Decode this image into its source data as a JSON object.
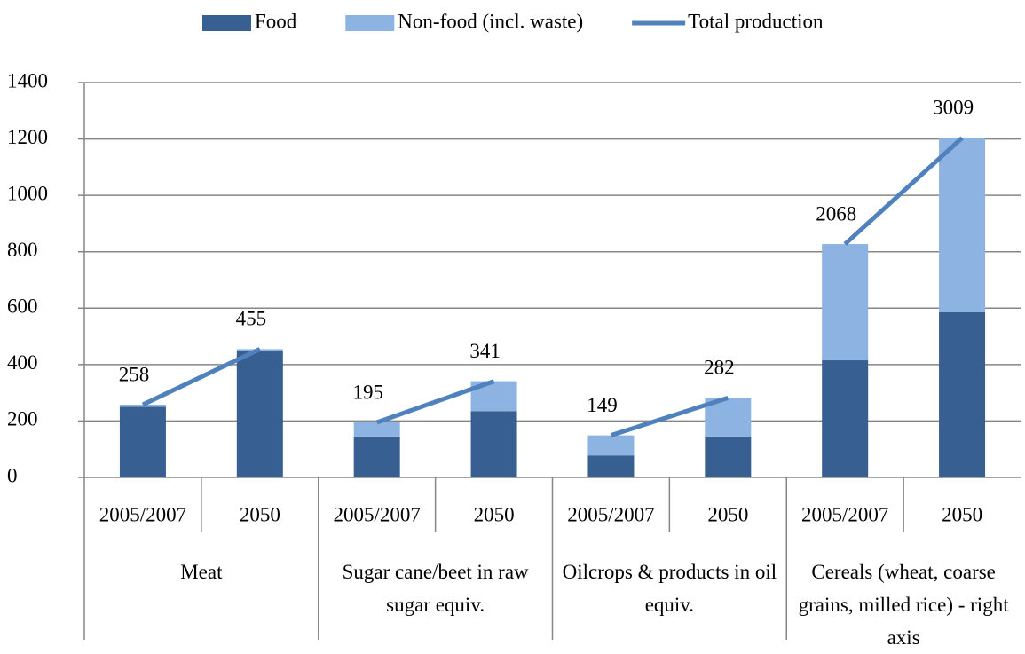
{
  "chart_data": {
    "type": "bar",
    "stacked": true,
    "categories": [
      "2005/2007",
      "2050",
      "2005/2007",
      "2050",
      "2005/2007",
      "2050",
      "2005/2007",
      "2050"
    ],
    "groups": [
      "Meat",
      "Sugar cane/beet in raw sugar equiv.",
      "Oilcrops & products in oil equiv.",
      "Cereals (wheat, coarse grains, milled rice) - right axis"
    ],
    "series": [
      {
        "name": "Food",
        "type": "bar",
        "color": "#375f91",
        "values": [
          250,
          450,
          145,
          235,
          78,
          145,
          null,
          null
        ]
      },
      {
        "name": "Non-food (incl. waste)",
        "type": "bar",
        "color": "#8db3e2",
        "values": [
          8,
          5,
          50,
          106,
          71,
          137,
          null,
          null
        ]
      },
      {
        "name": "Total production",
        "type": "line",
        "color": "#4f81bd",
        "values": [
          258,
          455,
          195,
          341,
          149,
          282,
          null,
          null
        ]
      },
      {
        "name": "Food",
        "type": "bar",
        "axis": "y2",
        "color": "#375f91",
        "values": [
          null,
          null,
          null,
          null,
          null,
          null,
          1038,
          1463
        ]
      },
      {
        "name": "Non-food (incl. waste)",
        "type": "bar",
        "axis": "y2",
        "color": "#8db3e2",
        "values": [
          null,
          null,
          null,
          null,
          null,
          null,
          1030,
          1546
        ]
      },
      {
        "name": "Total production",
        "type": "line",
        "axis": "y2",
        "color": "#4f81bd",
        "values": [
          null,
          null,
          null,
          null,
          null,
          null,
          2068,
          3009
        ]
      }
    ],
    "ylim": [
      0,
      1400
    ],
    "yticks": [
      0,
      200,
      400,
      600,
      800,
      1000,
      1200,
      1400
    ],
    "y2lim": [
      0,
      3500
    ],
    "grid": true,
    "legend": "top"
  }
}
